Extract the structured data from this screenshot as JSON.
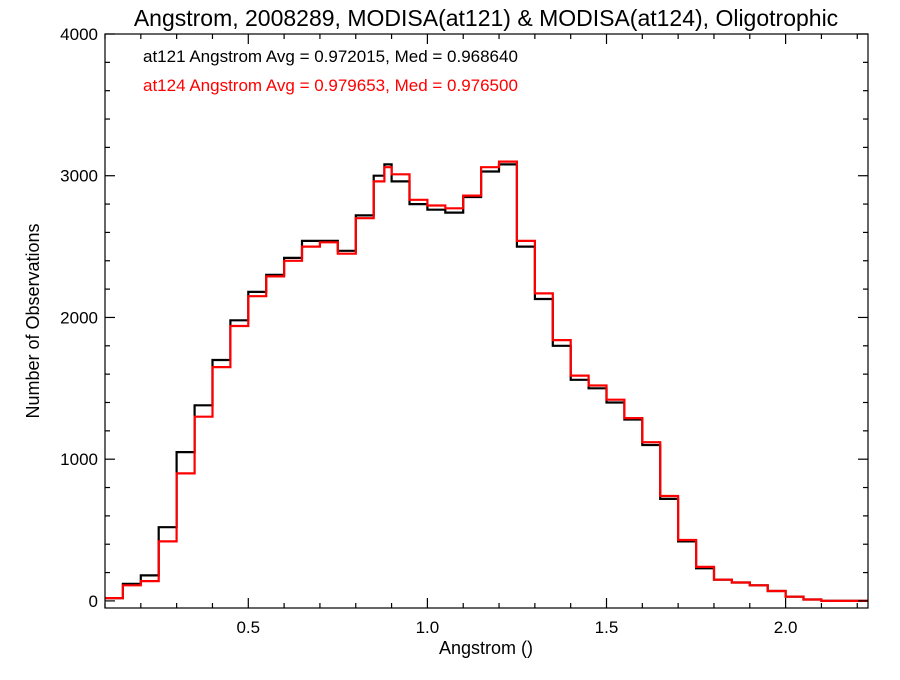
{
  "chart_data": {
    "type": "line",
    "style": "step-histogram",
    "title": "Angstrom, 2008289, MODISA(at121) & MODISA(at124), Oligotrophic",
    "xlabel": "Angstrom ()",
    "ylabel": "Number of Observations",
    "xlim": [
      0.1,
      2.23
    ],
    "ylim": [
      -50,
      4000
    ],
    "xticks": [
      0.5,
      1.0,
      1.5,
      2.0
    ],
    "xtick_labels": [
      "0.5",
      "1.0",
      "1.5",
      "2.0"
    ],
    "yticks": [
      0,
      1000,
      2000,
      3000,
      4000
    ],
    "ytick_labels": [
      "0",
      "1000",
      "2000",
      "3000",
      "4000"
    ],
    "grid": false,
    "series": [
      {
        "name": "at121",
        "color": "#000000",
        "annotation": "at121 Angstrom Avg = 0.972015, Med = 0.968640",
        "x": [
          0.1,
          0.15,
          0.2,
          0.25,
          0.3,
          0.35,
          0.4,
          0.45,
          0.5,
          0.55,
          0.6,
          0.65,
          0.7,
          0.75,
          0.8,
          0.85,
          0.88,
          0.9,
          0.95,
          1.0,
          1.05,
          1.1,
          1.15,
          1.2,
          1.25,
          1.3,
          1.35,
          1.4,
          1.45,
          1.5,
          1.55,
          1.6,
          1.65,
          1.7,
          1.75,
          1.8,
          1.85,
          1.9,
          1.95,
          2.0,
          2.05,
          2.1,
          2.15,
          2.23
        ],
        "y": [
          20,
          120,
          180,
          520,
          1050,
          1380,
          1700,
          1980,
          2180,
          2300,
          2420,
          2540,
          2540,
          2470,
          2720,
          3000,
          3080,
          2960,
          2800,
          2760,
          2740,
          2850,
          3030,
          3080,
          2500,
          2130,
          1800,
          1560,
          1500,
          1400,
          1280,
          1100,
          720,
          420,
          230,
          150,
          130,
          110,
          70,
          30,
          10,
          0,
          0,
          0
        ]
      },
      {
        "name": "at124",
        "color": "#ff0000",
        "annotation": "at124 Angstrom Avg = 0.979653, Med = 0.976500",
        "x": [
          0.1,
          0.15,
          0.2,
          0.25,
          0.3,
          0.35,
          0.4,
          0.45,
          0.5,
          0.55,
          0.6,
          0.65,
          0.7,
          0.75,
          0.8,
          0.85,
          0.88,
          0.9,
          0.95,
          1.0,
          1.05,
          1.1,
          1.15,
          1.2,
          1.25,
          1.3,
          1.35,
          1.4,
          1.45,
          1.5,
          1.55,
          1.6,
          1.65,
          1.7,
          1.75,
          1.8,
          1.85,
          1.9,
          1.95,
          2.0,
          2.05,
          2.1,
          2.15,
          2.23
        ],
        "y": [
          20,
          110,
          140,
          420,
          900,
          1300,
          1650,
          1940,
          2150,
          2290,
          2400,
          2500,
          2530,
          2450,
          2700,
          2960,
          3060,
          3010,
          2830,
          2790,
          2770,
          2860,
          3060,
          3100,
          2540,
          2170,
          1840,
          1590,
          1520,
          1420,
          1290,
          1120,
          740,
          430,
          240,
          150,
          130,
          110,
          70,
          30,
          10,
          0,
          0,
          0
        ]
      }
    ]
  }
}
